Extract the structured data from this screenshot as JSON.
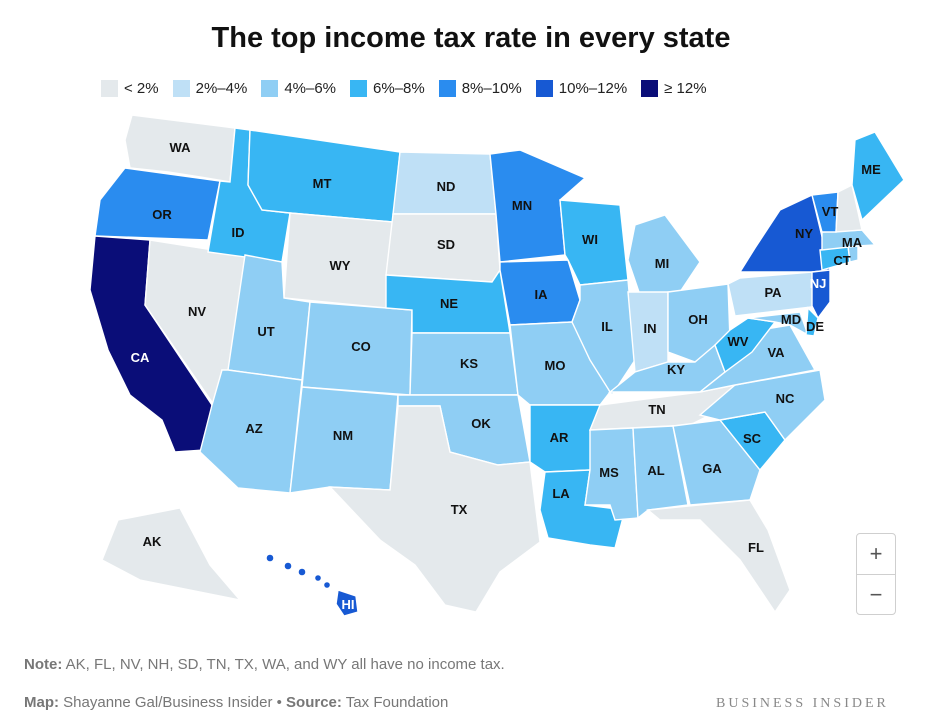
{
  "title": "The top income tax rate in every state",
  "legend": [
    {
      "label": "< 2%",
      "color": "#e4e9ec"
    },
    {
      "label": "2%–4%",
      "color": "#bfe0f6"
    },
    {
      "label": "4%–6%",
      "color": "#8fcef4"
    },
    {
      "label": "6%–8%",
      "color": "#38b6f3"
    },
    {
      "label": "8%–10%",
      "color": "#2a8cef"
    },
    {
      "label": "10%–12%",
      "color": "#1759d3"
    },
    {
      "label": "≥ 12%",
      "color": "#0a0d78"
    }
  ],
  "states": {
    "WA": {
      "label": "WA",
      "bin": "< 2%"
    },
    "OR": {
      "label": "OR",
      "bin": "8%–10%"
    },
    "CA": {
      "label": "CA",
      "bin": "≥ 12%"
    },
    "NV": {
      "label": "NV",
      "bin": "< 2%"
    },
    "ID": {
      "label": "ID",
      "bin": "6%–8%"
    },
    "MT": {
      "label": "MT",
      "bin": "6%–8%"
    },
    "WY": {
      "label": "WY",
      "bin": "< 2%"
    },
    "UT": {
      "label": "UT",
      "bin": "4%–6%"
    },
    "AZ": {
      "label": "AZ",
      "bin": "4%–6%"
    },
    "CO": {
      "label": "CO",
      "bin": "4%–6%"
    },
    "NM": {
      "label": "NM",
      "bin": "4%–6%"
    },
    "ND": {
      "label": "ND",
      "bin": "2%–4%"
    },
    "SD": {
      "label": "SD",
      "bin": "< 2%"
    },
    "NE": {
      "label": "NE",
      "bin": "6%–8%"
    },
    "KS": {
      "label": "KS",
      "bin": "4%–6%"
    },
    "OK": {
      "label": "OK",
      "bin": "4%–6%"
    },
    "TX": {
      "label": "TX",
      "bin": "< 2%"
    },
    "MN": {
      "label": "MN",
      "bin": "8%–10%"
    },
    "IA": {
      "label": "IA",
      "bin": "8%–10%"
    },
    "MO": {
      "label": "MO",
      "bin": "4%–6%"
    },
    "AR": {
      "label": "AR",
      "bin": "6%–8%"
    },
    "LA": {
      "label": "LA",
      "bin": "6%–8%"
    },
    "WI": {
      "label": "WI",
      "bin": "6%–8%"
    },
    "IL": {
      "label": "IL",
      "bin": "4%–6%"
    },
    "MI": {
      "label": "MI",
      "bin": "4%–6%"
    },
    "IN": {
      "label": "IN",
      "bin": "2%–4%"
    },
    "OH": {
      "label": "OH",
      "bin": "4%–6%"
    },
    "KY": {
      "label": "KY",
      "bin": "4%–6%"
    },
    "TN": {
      "label": "TN",
      "bin": "< 2%"
    },
    "MS": {
      "label": "MS",
      "bin": "4%–6%"
    },
    "AL": {
      "label": "AL",
      "bin": "4%–6%"
    },
    "GA": {
      "label": "GA",
      "bin": "4%–6%"
    },
    "FL": {
      "label": "FL",
      "bin": "< 2%"
    },
    "SC": {
      "label": "SC",
      "bin": "6%–8%"
    },
    "NC": {
      "label": "NC",
      "bin": "4%–6%"
    },
    "VA": {
      "label": "VA",
      "bin": "4%–6%"
    },
    "WV": {
      "label": "WV",
      "bin": "6%–8%"
    },
    "PA": {
      "label": "PA",
      "bin": "2%–4%"
    },
    "NY": {
      "label": "NY",
      "bin": "10%–12%"
    },
    "NJ": {
      "label": "NJ",
      "bin": "10%–12%"
    },
    "MD": {
      "label": "MD",
      "bin": "4%–6%"
    },
    "DE": {
      "label": "DE",
      "bin": "6%–8%"
    },
    "CT": {
      "label": "CT",
      "bin": "6%–8%"
    },
    "MA": {
      "label": "MA",
      "bin": "4%–6%"
    },
    "VT": {
      "label": "VT",
      "bin": "8%–10%"
    },
    "NH": {
      "label": "",
      "bin": "< 2%"
    },
    "ME": {
      "label": "ME",
      "bin": "6%–8%"
    },
    "RI": {
      "label": "",
      "bin": "4%–6%"
    },
    "AK": {
      "label": "AK",
      "bin": "< 2%"
    },
    "HI": {
      "label": "HI",
      "bin": "10%–12%"
    }
  },
  "zoom": {
    "in_label": "+",
    "out_label": "−"
  },
  "note": {
    "prefix": "Note:",
    "text": " AK, FL, NV, NH, SD, TN, TX, WA, and WY all have no income tax."
  },
  "credit": {
    "map_prefix": "Map:",
    "map_text": " Shayanne Gal/Business Insider • ",
    "source_prefix": "Source:",
    "source_text": " Tax Foundation"
  },
  "brand": "BUSINESS INSIDER"
}
